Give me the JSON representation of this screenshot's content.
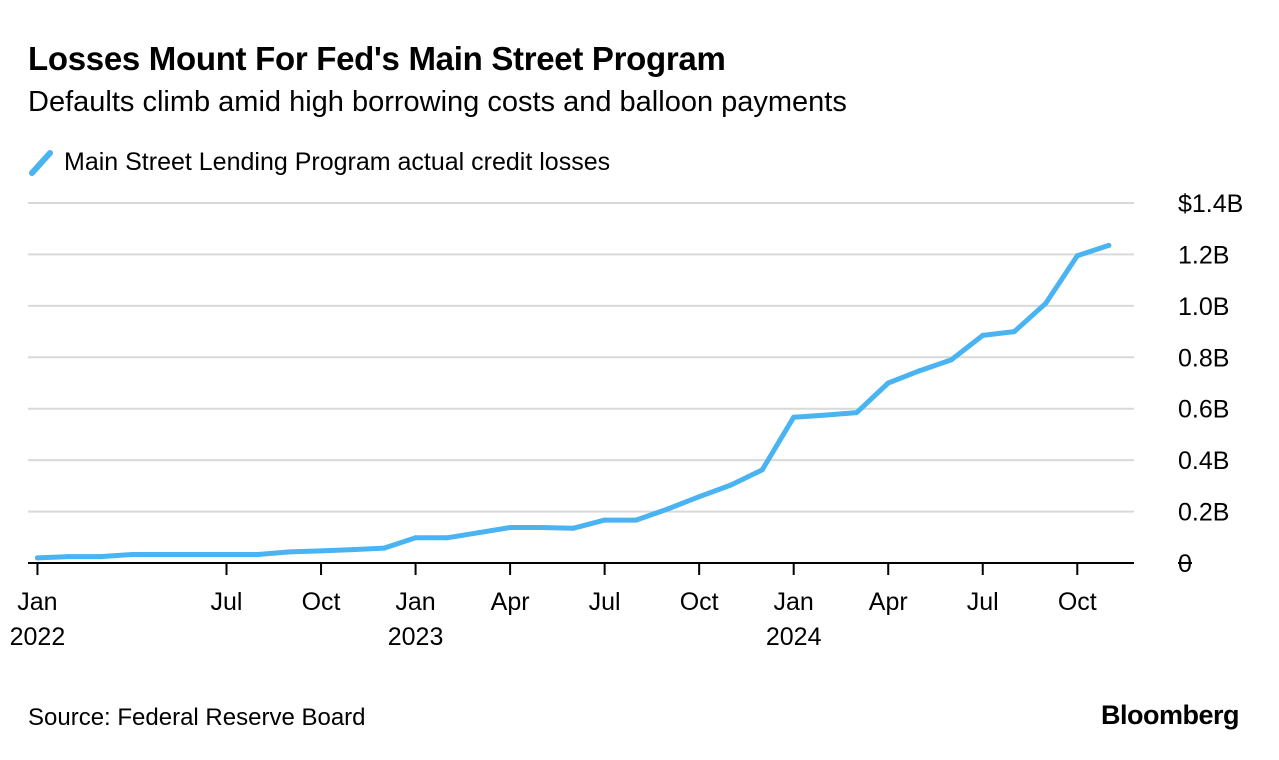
{
  "chart_data": {
    "type": "line",
    "title": "Losses Mount For Fed's Main Street Program",
    "subtitle": "Defaults climb amid high borrowing costs and balloon payments",
    "legend": [
      "Main Street Lending Program actual credit losses"
    ],
    "legend_position": "top-left",
    "series_color": "#4ab4f2",
    "y_ticks": [
      {
        "value": 0,
        "label": "0"
      },
      {
        "value": 0.2,
        "label": "0.2B"
      },
      {
        "value": 0.4,
        "label": "0.4B"
      },
      {
        "value": 0.6,
        "label": "0.6B"
      },
      {
        "value": 0.8,
        "label": "0.8B"
      },
      {
        "value": 1.0,
        "label": "1.0B"
      },
      {
        "value": 1.2,
        "label": "1.2B"
      },
      {
        "value": 1.4,
        "label": "$1.4B"
      }
    ],
    "ylim": [
      0,
      1.4
    ],
    "y_unit": "billions of dollars",
    "xlim": [
      -0.3,
      34.8
    ],
    "x_unit": "months since Jan 2022",
    "x_ticks": [
      {
        "value": 0,
        "label": "Jan",
        "year": "2022"
      },
      {
        "value": 6,
        "label": "Jul",
        "year": ""
      },
      {
        "value": 9,
        "label": "Oct",
        "year": ""
      },
      {
        "value": 12,
        "label": "Jan",
        "year": "2023"
      },
      {
        "value": 15,
        "label": "Apr",
        "year": ""
      },
      {
        "value": 18,
        "label": "Jul",
        "year": ""
      },
      {
        "value": 21,
        "label": "Oct",
        "year": ""
      },
      {
        "value": 24,
        "label": "Jan",
        "year": "2024"
      },
      {
        "value": 27,
        "label": "Apr",
        "year": ""
      },
      {
        "value": 30,
        "label": "Jul",
        "year": ""
      },
      {
        "value": 33,
        "label": "Oct",
        "year": ""
      }
    ],
    "grid": true,
    "series": [
      {
        "name": "Main Street Lending Program actual credit losses",
        "x": [
          0,
          1,
          2,
          3,
          4,
          5,
          6,
          7,
          8,
          9,
          10,
          11,
          12,
          13,
          14,
          15,
          16,
          17,
          18,
          19,
          20,
          21,
          22,
          23,
          24,
          25,
          26,
          27,
          28,
          29,
          30,
          31,
          32,
          33,
          34
        ],
        "values": [
          0.02,
          0.025,
          0.025,
          0.033,
          0.033,
          0.033,
          0.033,
          0.033,
          0.043,
          0.047,
          0.052,
          0.058,
          0.098,
          0.098,
          0.118,
          0.138,
          0.138,
          0.135,
          0.167,
          0.167,
          0.21,
          0.258,
          0.303,
          0.362,
          0.567,
          0.575,
          0.585,
          0.7,
          0.748,
          0.79,
          0.885,
          0.9,
          1.01,
          1.195,
          1.235
        ]
      }
    ]
  },
  "footer": {
    "source": "Source: Federal Reserve Board",
    "brand": "Bloomberg"
  }
}
